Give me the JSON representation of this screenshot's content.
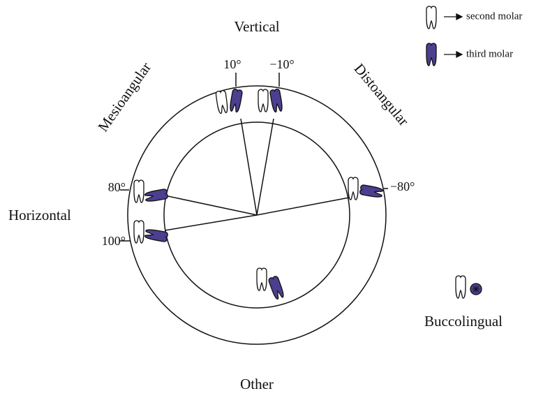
{
  "labels": {
    "vertical": "Vertical",
    "mesioangular": "Mesioangular",
    "distoangular": "Distoangular",
    "horizontal": "Horizontal",
    "other": "Other",
    "buccolingual": "Buccolingual"
  },
  "angles": {
    "a10": "10°",
    "am10": "−10°",
    "a80": "80°",
    "am80": "−80°",
    "a100": "100°"
  },
  "legend": {
    "second": "second molar",
    "third": "third molar"
  }
}
